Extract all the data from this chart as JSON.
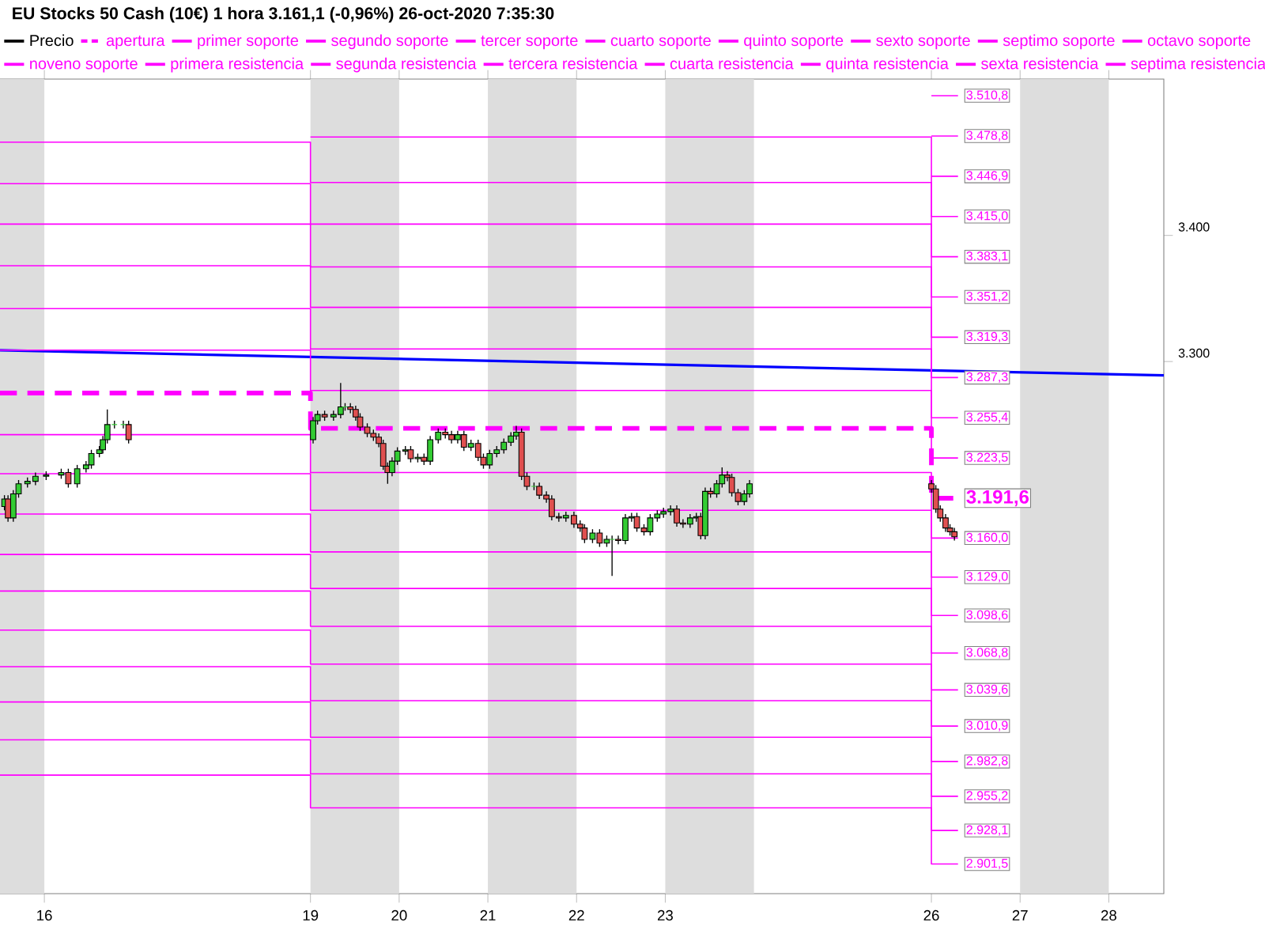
{
  "chart_data": {
    "type": "candlestick",
    "title": "EU Stocks 50 Cash (10€)   1 hora   3.161,1 (-0,96%)   26-oct-2020 7:35:30",
    "legend": "top",
    "xlim": [
      "2020-10-15T12:00",
      "2020-10-28T14:53"
    ],
    "xticks": [
      {
        "value": "2020-10-16",
        "label": "16"
      },
      {
        "value": "2020-10-19",
        "label": "19"
      },
      {
        "value": "2020-10-20",
        "label": "20"
      },
      {
        "value": "2020-10-21",
        "label": "21"
      },
      {
        "value": "2020-10-22",
        "label": "22"
      },
      {
        "value": "2020-10-23",
        "label": "23"
      },
      {
        "value": "2020-10-26",
        "label": "26"
      },
      {
        "value": "2020-10-27",
        "label": "27"
      },
      {
        "value": "2020-10-28",
        "label": "28"
      }
    ],
    "ylim": [
      2878,
      3524
    ],
    "yticks": [
      {
        "value": 3300,
        "label": "3.300"
      },
      {
        "value": 3400,
        "label": "3.400"
      }
    ],
    "bands": [
      {
        "axis": "x",
        "from": "2020-10-15T12:00",
        "to": "2020-10-16",
        "color": "#dddddd"
      },
      {
        "axis": "x",
        "from": "2020-10-19",
        "to": "2020-10-20",
        "color": "#dddddd"
      },
      {
        "axis": "x",
        "from": "2020-10-21",
        "to": "2020-10-22",
        "color": "#dddddd"
      },
      {
        "axis": "x",
        "from": "2020-10-23",
        "to": "2020-10-24",
        "color": "#dddddd"
      },
      {
        "axis": "x",
        "from": "2020-10-27",
        "to": "2020-10-28",
        "color": "#dddddd"
      }
    ],
    "series": [
      {
        "name": "Precio",
        "color": "#000000",
        "x": [
          "2020-10-15T13:12",
          "2020-10-15T14:10",
          "2020-10-15T15:36",
          "2020-10-15T17:02",
          "2020-10-15T19:26",
          "2020-10-15T21:36",
          "2020-10-16T00:29",
          "2020-10-16T04:34",
          "2020-10-16T06:29",
          "2020-10-16T08:53",
          "2020-10-16T11:17",
          "2020-10-16T12:43",
          "2020-10-16T14:53",
          "2020-10-16T15:50",
          "2020-10-16T17:02",
          "2020-10-16T18:58",
          "2020-10-16T21:22",
          "2020-10-16T22:48",
          "2020-10-19T00:43",
          "2020-10-19T01:55",
          "2020-10-19T03:50",
          "2020-10-19T06:14",
          "2020-10-19T08:10",
          "2020-10-19T09:22",
          "2020-10-19T10:48",
          "2020-10-19T12:14",
          "2020-10-19T13:26",
          "2020-10-19T15:22",
          "2020-10-19T17:02",
          "2020-10-19T18:29",
          "2020-10-19T19:41",
          "2020-10-19T20:53",
          "2020-10-19T22:05",
          "2020-10-19T23:31",
          "2020-10-20T01:41",
          "2020-10-20T03:07",
          "2020-10-20T05:02",
          "2020-10-20T06:43",
          "2020-10-20T08:24",
          "2020-10-20T10:34",
          "2020-10-20T12:29",
          "2020-10-20T14:10",
          "2020-10-20T15:50",
          "2020-10-20T17:31",
          "2020-10-20T19:26",
          "2020-10-20T21:22",
          "2020-10-20T22:48",
          "2020-10-21T00:29",
          "2020-10-21T02:24",
          "2020-10-21T04:19",
          "2020-10-21T06:14",
          "2020-10-21T07:41",
          "2020-10-21T09:07",
          "2020-10-21T10:34",
          "2020-10-21T12:29",
          "2020-10-21T13:55",
          "2020-10-21T15:50",
          "2020-10-21T17:17",
          "2020-10-21T19:12",
          "2020-10-21T21:07",
          "2020-10-21T23:17",
          "2020-10-22T00:58",
          "2020-10-22T02:10",
          "2020-10-22T04:19",
          "2020-10-22T06:14",
          "2020-10-22T08:10",
          "2020-10-22T09:36",
          "2020-10-22T11:17",
          "2020-10-22T13:12",
          "2020-10-22T14:53",
          "2020-10-22T16:19",
          "2020-10-22T18:14",
          "2020-10-22T19:55",
          "2020-10-22T21:50",
          "2020-10-22T23:31",
          "2020-10-23T01:26",
          "2020-10-23T03:07",
          "2020-10-23T04:48",
          "2020-10-23T06:43",
          "2020-10-23T08:24",
          "2020-10-23T09:36",
          "2020-10-23T10:48",
          "2020-10-23T12:14",
          "2020-10-23T13:55",
          "2020-10-23T15:22",
          "2020-10-23T16:48",
          "2020-10-23T18:00",
          "2020-10-23T19:41",
          "2020-10-23T21:22",
          "2020-10-23T22:48",
          "2020-10-26T00:00",
          "2020-10-26T01:12",
          "2020-10-26T02:24",
          "2020-10-26T03:50",
          "2020-10-26T05:02",
          "2020-10-26T06:14"
        ],
        "ohlc": [
          [
            3185,
            3194,
            3182,
            3191
          ],
          [
            3191,
            3194,
            3173,
            3176
          ],
          [
            3176,
            3198,
            3173,
            3195
          ],
          [
            3195,
            3206,
            3192,
            3203
          ],
          [
            3203,
            3208,
            3200,
            3205
          ],
          [
            3205,
            3212,
            3202,
            3209
          ],
          [
            3209,
            3213,
            3206,
            3210
          ],
          [
            3210,
            3215,
            3207,
            3212
          ],
          [
            3212,
            3215,
            3200,
            3203
          ],
          [
            3203,
            3218,
            3200,
            3215
          ],
          [
            3215,
            3221,
            3212,
            3218
          ],
          [
            3218,
            3230,
            3215,
            3227
          ],
          [
            3227,
            3233,
            3224,
            3230
          ],
          [
            3230,
            3241,
            3227,
            3238
          ],
          [
            3238,
            3262,
            3235,
            3250
          ],
          [
            3250,
            3253,
            3247,
            3250
          ],
          [
            3250,
            3253,
            3247,
            3250
          ],
          [
            3250,
            3253,
            3235,
            3238
          ],
          [
            3238,
            3256,
            3235,
            3253
          ],
          [
            3253,
            3261,
            3250,
            3258
          ],
          [
            3258,
            3261,
            3253,
            3256
          ],
          [
            3256,
            3261,
            3253,
            3258
          ],
          [
            3258,
            3283,
            3255,
            3264
          ],
          [
            3264,
            3267,
            3261,
            3264
          ],
          [
            3264,
            3267,
            3259,
            3262
          ],
          [
            3262,
            3265,
            3253,
            3256
          ],
          [
            3256,
            3259,
            3245,
            3248
          ],
          [
            3248,
            3251,
            3240,
            3243
          ],
          [
            3243,
            3246,
            3237,
            3240
          ],
          [
            3240,
            3243,
            3232,
            3235
          ],
          [
            3235,
            3238,
            3214,
            3217
          ],
          [
            3217,
            3220,
            3203,
            3212
          ],
          [
            3212,
            3224,
            3209,
            3221
          ],
          [
            3221,
            3232,
            3218,
            3229
          ],
          [
            3229,
            3233,
            3226,
            3230
          ],
          [
            3230,
            3233,
            3220,
            3223
          ],
          [
            3223,
            3227,
            3220,
            3224
          ],
          [
            3224,
            3227,
            3218,
            3221
          ],
          [
            3221,
            3241,
            3218,
            3238
          ],
          [
            3238,
            3247,
            3235,
            3244
          ],
          [
            3244,
            3247,
            3239,
            3242
          ],
          [
            3242,
            3245,
            3235,
            3238
          ],
          [
            3238,
            3245,
            3235,
            3242
          ],
          [
            3242,
            3245,
            3229,
            3232
          ],
          [
            3232,
            3238,
            3229,
            3235
          ],
          [
            3235,
            3238,
            3221,
            3224
          ],
          [
            3224,
            3227,
            3215,
            3218
          ],
          [
            3218,
            3230,
            3215,
            3227
          ],
          [
            3227,
            3233,
            3224,
            3230
          ],
          [
            3230,
            3239,
            3227,
            3236
          ],
          [
            3236,
            3244,
            3233,
            3241
          ],
          [
            3241,
            3249,
            3238,
            3244
          ],
          [
            3244,
            3247,
            3206,
            3209
          ],
          [
            3209,
            3212,
            3198,
            3201
          ],
          [
            3201,
            3204,
            3198,
            3201
          ],
          [
            3201,
            3204,
            3191,
            3194
          ],
          [
            3194,
            3197,
            3188,
            3191
          ],
          [
            3191,
            3194,
            3174,
            3177
          ],
          [
            3177,
            3180,
            3173,
            3176
          ],
          [
            3176,
            3181,
            3173,
            3178
          ],
          [
            3178,
            3181,
            3168,
            3171
          ],
          [
            3171,
            3174,
            3165,
            3168
          ],
          [
            3168,
            3171,
            3156,
            3159
          ],
          [
            3159,
            3167,
            3156,
            3164
          ],
          [
            3164,
            3167,
            3153,
            3156
          ],
          [
            3156,
            3162,
            3153,
            3159
          ],
          [
            3159,
            3162,
            3130,
            3159
          ],
          [
            3159,
            3162,
            3155,
            3158
          ],
          [
            3158,
            3179,
            3155,
            3176
          ],
          [
            3176,
            3180,
            3173,
            3177
          ],
          [
            3177,
            3180,
            3165,
            3168
          ],
          [
            3168,
            3171,
            3162,
            3165
          ],
          [
            3165,
            3179,
            3162,
            3176
          ],
          [
            3176,
            3182,
            3173,
            3179
          ],
          [
            3179,
            3184,
            3176,
            3181
          ],
          [
            3181,
            3186,
            3178,
            3183
          ],
          [
            3183,
            3186,
            3169,
            3172
          ],
          [
            3172,
            3175,
            3168,
            3171
          ],
          [
            3171,
            3179,
            3168,
            3176
          ],
          [
            3176,
            3180,
            3173,
            3177
          ],
          [
            3177,
            3180,
            3159,
            3162
          ],
          [
            3162,
            3200,
            3159,
            3197
          ],
          [
            3197,
            3200,
            3192,
            3195
          ],
          [
            3195,
            3206,
            3192,
            3203
          ],
          [
            3203,
            3216,
            3200,
            3210
          ],
          [
            3210,
            3213,
            3205,
            3208
          ],
          [
            3208,
            3211,
            3193,
            3196
          ],
          [
            3196,
            3199,
            3186,
            3189
          ],
          [
            3189,
            3198,
            3186,
            3195
          ],
          [
            3195,
            3206,
            3192,
            3203
          ],
          [
            3203,
            3206,
            3196,
            3199
          ],
          [
            3199,
            3202,
            3180,
            3183
          ],
          [
            3183,
            3186,
            3173,
            3176
          ],
          [
            3176,
            3179,
            3165,
            3168
          ],
          [
            3168,
            3171,
            3162,
            3165
          ],
          [
            3165,
            3168,
            3158,
            3161
          ]
        ],
        "colors": [
          "#33cc33",
          "#e05050",
          "#33cc33",
          "#33cc33",
          "#33cc33",
          "#33cc33",
          "#33cc33",
          "#33cc33",
          "#e05050",
          "#33cc33",
          "#33cc33",
          "#33cc33",
          "#33cc33",
          "#33cc33",
          "#33cc33",
          "#33cc33",
          "#33cc33",
          "#e05050",
          "#33cc33",
          "#33cc33",
          "#e05050",
          "#33cc33",
          "#33cc33",
          "#33cc33",
          "#e05050",
          "#e05050",
          "#e05050",
          "#e05050",
          "#e05050",
          "#e05050",
          "#e05050",
          "#e05050",
          "#33cc33",
          "#33cc33",
          "#33cc33",
          "#e05050",
          "#33cc33",
          "#e05050",
          "#33cc33",
          "#33cc33",
          "#e05050",
          "#e05050",
          "#33cc33",
          "#e05050",
          "#33cc33",
          "#e05050",
          "#e05050",
          "#33cc33",
          "#33cc33",
          "#33cc33",
          "#33cc33",
          "#33cc33",
          "#e05050",
          "#e05050",
          "#33cc33",
          "#e05050",
          "#e05050",
          "#e05050",
          "#e05050",
          "#33cc33",
          "#e05050",
          "#e05050",
          "#e05050",
          "#33cc33",
          "#e05050",
          "#33cc33",
          "#33cc33",
          "#e05050",
          "#33cc33",
          "#33cc33",
          "#e05050",
          "#e05050",
          "#33cc33",
          "#33cc33",
          "#33cc33",
          "#33cc33",
          "#e05050",
          "#e05050",
          "#33cc33",
          "#33cc33",
          "#e05050",
          "#33cc33",
          "#e05050",
          "#33cc33",
          "#33cc33",
          "#e05050",
          "#e05050",
          "#e05050",
          "#33cc33",
          "#33cc33",
          "#e05050",
          "#e05050",
          "#e05050",
          "#e05050",
          "#e05050",
          "#e05050"
        ]
      },
      {
        "name": "apertura",
        "type": "step",
        "color": "#ff00ff",
        "line_style": "dashed",
        "x": [
          "2020-10-15T12:00",
          "2020-10-19",
          "2020-10-26",
          "2020-10-26T07:12"
        ],
        "values": [
          3275,
          3247,
          3191.6,
          3191.6
        ],
        "value_labels": [
          null,
          null,
          null,
          "3.191,6"
        ]
      },
      {
        "name": "primer soporte",
        "type": "step",
        "color": "#ff00ff",
        "x": [
          "2020-10-15T12:00",
          "2020-10-19",
          "2020-10-26",
          "2020-10-26T07:12"
        ],
        "values": [
          3242,
          3212,
          3160.0,
          3160.0
        ],
        "value_labels": [
          null,
          null,
          null,
          "3.160,0"
        ]
      },
      {
        "name": "segundo soporte",
        "type": "step",
        "color": "#ff00ff",
        "x": [
          "2020-10-15T12:00",
          "2020-10-19",
          "2020-10-26",
          "2020-10-26T07:12"
        ],
        "values": [
          3211,
          3182,
          3129.0,
          3129.0
        ],
        "value_labels": [
          null,
          null,
          null,
          "3.129,0"
        ]
      },
      {
        "name": "tercer soporte",
        "type": "step",
        "color": "#ff00ff",
        "x": [
          "2020-10-15T12:00",
          "2020-10-19",
          "2020-10-26",
          "2020-10-26T07:12"
        ],
        "values": [
          3179,
          3149,
          3098.6,
          3098.6
        ],
        "value_labels": [
          null,
          null,
          null,
          "3.098,6"
        ]
      },
      {
        "name": "cuarto soporte",
        "type": "step",
        "color": "#ff00ff",
        "x": [
          "2020-10-15T12:00",
          "2020-10-19",
          "2020-10-26",
          "2020-10-26T07:12"
        ],
        "values": [
          3147,
          3120,
          3068.8,
          3068.8
        ],
        "value_labels": [
          null,
          null,
          null,
          "3.068,8"
        ]
      },
      {
        "name": "quinto soporte",
        "type": "step",
        "color": "#ff00ff",
        "x": [
          "2020-10-15T12:00",
          "2020-10-19",
          "2020-10-26",
          "2020-10-26T07:12"
        ],
        "values": [
          3118,
          3090,
          3039.6,
          3039.6
        ],
        "value_labels": [
          null,
          null,
          null,
          "3.039,6"
        ]
      },
      {
        "name": "sexto soporte",
        "type": "step",
        "color": "#ff00ff",
        "x": [
          "2020-10-15T12:00",
          "2020-10-19",
          "2020-10-26",
          "2020-10-26T07:12"
        ],
        "values": [
          3087,
          3060,
          3010.9,
          3010.9
        ],
        "value_labels": [
          null,
          null,
          null,
          "3.010,9"
        ]
      },
      {
        "name": "septimo soporte",
        "type": "step",
        "color": "#ff00ff",
        "x": [
          "2020-10-15T12:00",
          "2020-10-19",
          "2020-10-26",
          "2020-10-26T07:12"
        ],
        "values": [
          3058,
          3031,
          2982.8,
          2982.8
        ],
        "value_labels": [
          null,
          null,
          null,
          "2.982,8"
        ]
      },
      {
        "name": "octavo soporte",
        "type": "step",
        "color": "#ff00ff",
        "x": [
          "2020-10-15T12:00",
          "2020-10-19",
          "2020-10-26",
          "2020-10-26T07:12"
        ],
        "values": [
          3030,
          3002,
          2955.2,
          2955.2
        ],
        "value_labels": [
          null,
          null,
          null,
          "2.955,2"
        ]
      },
      {
        "name": "noveno soporte",
        "type": "step",
        "color": "#ff00ff",
        "x": [
          "2020-10-15T12:00",
          "2020-10-19",
          "2020-10-26",
          "2020-10-26T07:12"
        ],
        "values": [
          3000,
          2973,
          2928.1,
          2928.1
        ],
        "value_labels": [
          null,
          null,
          null,
          "2.928,1"
        ]
      },
      {
        "type": "step",
        "color": "#ff00ff",
        "x": [
          "2020-10-15T12:00",
          "2020-10-19",
          "2020-10-26",
          "2020-10-26T07:12"
        ],
        "values": [
          2972,
          2946,
          2901.5,
          2901.5
        ],
        "value_labels": [
          null,
          null,
          null,
          "2.901,5"
        ]
      },
      {
        "name": "primera resistencia",
        "type": "step",
        "color": "#ff00ff",
        "x": [
          "2020-10-15T12:00",
          "2020-10-19",
          "2020-10-26",
          "2020-10-26T07:12"
        ],
        "values": [
          3309,
          3277,
          3223.5,
          3223.5
        ],
        "value_labels": [
          null,
          null,
          null,
          "3.223,5"
        ]
      },
      {
        "name": "segunda resistencia",
        "type": "step",
        "color": "#ff00ff",
        "x": [
          "2020-10-15T12:00",
          "2020-10-19",
          "2020-10-26",
          "2020-10-26T07:12"
        ],
        "values": [
          3342,
          3310,
          3255.4,
          3255.4
        ],
        "value_labels": [
          null,
          null,
          null,
          "3.255,4"
        ]
      },
      {
        "name": "tercera resistencia",
        "type": "step",
        "color": "#ff00ff",
        "x": [
          "2020-10-15T12:00",
          "2020-10-19",
          "2020-10-26",
          "2020-10-26T07:12"
        ],
        "values": [
          3376,
          3343,
          3287.3,
          3287.3
        ],
        "value_labels": [
          null,
          null,
          null,
          "3.287,3"
        ]
      },
      {
        "name": "cuarta resistencia",
        "type": "step",
        "color": "#ff00ff",
        "x": [
          "2020-10-15T12:00",
          "2020-10-19",
          "2020-10-26",
          "2020-10-26T07:12"
        ],
        "values": [
          3409,
          3375,
          3319.3,
          3319.3
        ],
        "value_labels": [
          null,
          null,
          null,
          "3.319,3"
        ]
      },
      {
        "name": "quinta resistencia",
        "type": "step",
        "color": "#ff00ff",
        "x": [
          "2020-10-15T12:00",
          "2020-10-19",
          "2020-10-26",
          "2020-10-26T07:12"
        ],
        "values": [
          3441,
          3409,
          3351.2,
          3351.2
        ],
        "value_labels": [
          null,
          null,
          null,
          "3.351,2"
        ]
      },
      {
        "name": "sexta resistencia",
        "type": "step",
        "color": "#ff00ff",
        "x": [
          "2020-10-15T12:00",
          "2020-10-19",
          "2020-10-26",
          "2020-10-26T07:12"
        ],
        "values": [
          3474,
          3442,
          3383.1,
          3383.1
        ],
        "value_labels": [
          null,
          null,
          null,
          "3.383,1"
        ]
      },
      {
        "name": "septima resistencia",
        "type": "step",
        "color": "#ff00ff",
        "x": [
          "2020-10-19",
          "2020-10-26",
          "2020-10-26T07:12"
        ],
        "values": [
          3478,
          3415.0,
          3415.0
        ],
        "value_labels": [
          null,
          null,
          "3.415,0"
        ]
      },
      {
        "type": "step",
        "color": "#ff00ff",
        "x": [
          "2020-10-26",
          "2020-10-26T07:12"
        ],
        "values": [
          3446.9,
          3446.9
        ],
        "value_labels": [
          null,
          "3.446,9"
        ]
      },
      {
        "type": "step",
        "color": "#ff00ff",
        "x": [
          "2020-10-26",
          "2020-10-26T07:12"
        ],
        "values": [
          3478.8,
          3478.8
        ],
        "value_labels": [
          null,
          "3.478,8"
        ]
      },
      {
        "type": "step",
        "color": "#ff00ff",
        "x": [
          "2020-10-26",
          "2020-10-26T07:12"
        ],
        "values": [
          3510.8,
          3510.8
        ],
        "value_labels": [
          null,
          "3.510,8"
        ]
      },
      {
        "type": "line",
        "color": "#0000ff",
        "x": [
          "2020-10-15T12:00",
          "2020-10-28T14:53"
        ],
        "values": [
          3309,
          3289
        ]
      }
    ]
  }
}
